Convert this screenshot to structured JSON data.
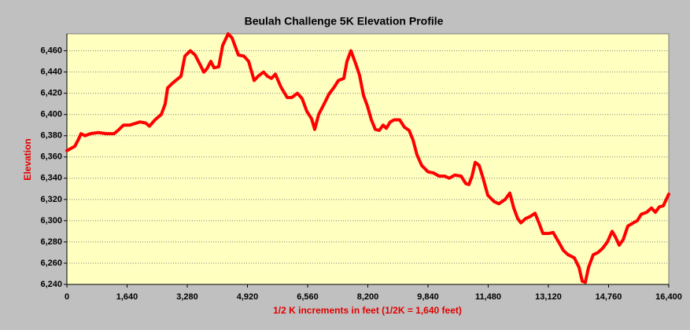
{
  "chart_data": {
    "type": "line",
    "title": "Beulah Challenge 5K Elevation Profile",
    "x_label": "1/2 K increments in feet (1/2K = 1,640 feet)",
    "y_label": "Elevation",
    "color": "#ff0000",
    "grid": true,
    "xlim": [
      0,
      16400
    ],
    "ylim": [
      6240,
      6476
    ],
    "xticks": [
      0,
      {
        "value": 1640,
        "label": "1,640"
      },
      {
        "value": 3280,
        "label": "3,280"
      },
      {
        "value": 4920,
        "label": "4,920"
      },
      {
        "value": 6560,
        "label": "6,560"
      },
      {
        "value": 8200,
        "label": "8,200"
      },
      {
        "value": 9840,
        "label": "9,840"
      },
      {
        "value": 11480,
        "label": "11,480"
      },
      {
        "value": 13120,
        "label": "13,120"
      },
      {
        "value": 14760,
        "label": "14,760"
      },
      {
        "value": 16400,
        "label": "16,400"
      }
    ],
    "yticks": [
      {
        "value": 6240,
        "label": "6,240"
      },
      {
        "value": 6260,
        "label": "6,260"
      },
      {
        "value": 6280,
        "label": "6,280"
      },
      {
        "value": 6300,
        "label": "6,300"
      },
      {
        "value": 6320,
        "label": "6,320"
      },
      {
        "value": 6340,
        "label": "6,340"
      },
      {
        "value": 6360,
        "label": "6,360"
      },
      {
        "value": 6380,
        "label": "6,380"
      },
      {
        "value": 6400,
        "label": "6,400"
      },
      {
        "value": 6420,
        "label": "6,420"
      },
      {
        "value": 6440,
        "label": "6,440"
      },
      {
        "value": 6460,
        "label": "6,460"
      }
    ],
    "x": [
      0,
      214,
      322,
      386,
      493,
      643,
      858,
      1072,
      1286,
      1394,
      1544,
      1715,
      1994,
      2144,
      2251,
      2401,
      2572,
      2680,
      2744,
      2894,
      3109,
      3216,
      3366,
      3494,
      3645,
      3730,
      3816,
      3923,
      4009,
      4138,
      4245,
      4395,
      4502,
      4674,
      4824,
      4953,
      5102,
      5210,
      5360,
      5467,
      5574,
      5682,
      5832,
      6003,
      6131,
      6281,
      6410,
      6539,
      6667,
      6753,
      6860,
      7010,
      7139,
      7289,
      7396,
      7546,
      7632,
      7739,
      7868,
      7975,
      8082,
      8190,
      8297,
      8404,
      8511,
      8618,
      8704,
      8811,
      8918,
      9068,
      9197,
      9326,
      9433,
      9540,
      9669,
      9840,
      9990,
      10141,
      10291,
      10419,
      10569,
      10741,
      10869,
      10955,
      11041,
      11127,
      11234,
      11341,
      11469,
      11641,
      11770,
      11941,
      12070,
      12177,
      12284,
      12370,
      12499,
      12627,
      12756,
      12863,
      12970,
      13141,
      13248,
      13398,
      13527,
      13656,
      13827,
      13956,
      14041,
      14127,
      14213,
      14341,
      14470,
      14599,
      14728,
      14856,
      14942,
      15049,
      15156,
      15285,
      15435,
      15542,
      15649,
      15799,
      15928,
      16035,
      16142,
      16249,
      16400
    ],
    "values": [
      6366,
      6370,
      6377,
      6382,
      6380,
      6382,
      6383,
      6382,
      6382,
      6385,
      6390,
      6390,
      6393,
      6392,
      6389,
      6395,
      6400,
      6410,
      6425,
      6430,
      6436,
      6455,
      6460,
      6456,
      6446,
      6440,
      6443,
      6450,
      6444,
      6445,
      6465,
      6476,
      6472,
      6456,
      6455,
      6450,
      6432,
      6436,
      6440,
      6436,
      6434,
      6438,
      6426,
      6416,
      6416,
      6420,
      6415,
      6403,
      6396,
      6386,
      6400,
      6410,
      6419,
      6426,
      6432,
      6434,
      6450,
      6460,
      6448,
      6437,
      6418,
      6408,
      6395,
      6386,
      6385,
      6390,
      6387,
      6393,
      6395,
      6395,
      6388,
      6385,
      6376,
      6362,
      6352,
      6346,
      6345,
      6342,
      6342,
      6340,
      6343,
      6342,
      6335,
      6334,
      6342,
      6355,
      6352,
      6340,
      6324,
      6318,
      6316,
      6320,
      6326,
      6312,
      6302,
      6298,
      6302,
      6304,
      6307,
      6298,
      6288,
      6288,
      6289,
      6280,
      6272,
      6268,
      6265,
      6256,
      6243,
      6242,
      6256,
      6268,
      6270,
      6274,
      6280,
      6290,
      6285,
      6277,
      6282,
      6295,
      6298,
      6300,
      6306,
      6308,
      6312,
      6308,
      6313,
      6314,
      6325
    ]
  }
}
